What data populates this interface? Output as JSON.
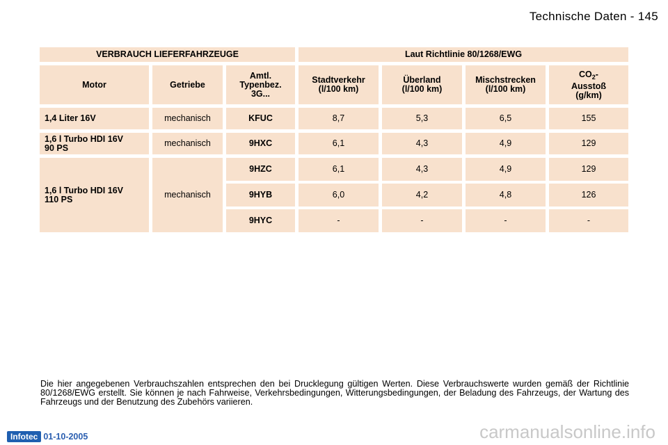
{
  "header": {
    "title": "Technische Daten",
    "separator": "-",
    "page": "145"
  },
  "table": {
    "title_left": "VERBRAUCH LIEFERFAHRZEUGE",
    "title_right": "Laut Richtlinie 80/1268/EWG",
    "col_motor": "Motor",
    "col_getriebe": "Getriebe",
    "col_typ": [
      "Amtl.",
      "Typenbez.",
      "3G..."
    ],
    "col_stadt": [
      "Stadtverkehr",
      "(l/100 km)"
    ],
    "col_ueberland": [
      "Überland",
      "(l/100 km)"
    ],
    "col_misch": [
      "Mischstrecken",
      "(l/100 km)"
    ],
    "col_co2_prefix": "CO",
    "col_co2_sub": "2",
    "col_co2_suffix": "-",
    "col_co2_lines": [
      "Ausstoß",
      "(g/km)"
    ],
    "rows": [
      {
        "motor": "1,4 Liter 16V",
        "getriebe": "mechanisch",
        "typ": "KFUC",
        "stadt": "8,7",
        "ueberland": "5,3",
        "misch": "6,5",
        "co2": "155"
      },
      {
        "motor_lines": [
          "1,6 l Turbo HDI 16V",
          "90 PS"
        ],
        "getriebe": "mechanisch",
        "typ": "9HXC",
        "stadt": "6,1",
        "ueberland": "4,3",
        "misch": "4,9",
        "co2": "129"
      }
    ],
    "group": {
      "motor_lines": [
        "1,6 l Turbo HDI 16V",
        "110 PS"
      ],
      "getriebe": "mechanisch",
      "rows": [
        {
          "typ": "9HZC",
          "stadt": "6,1",
          "ueberland": "4,3",
          "misch": "4,9",
          "co2": "129"
        },
        {
          "typ": "9HYB",
          "stadt": "6,0",
          "ueberland": "4,2",
          "misch": "4,8",
          "co2": "126"
        },
        {
          "typ": "9HYC",
          "stadt": "-",
          "ueberland": "-",
          "misch": "-",
          "co2": "-"
        }
      ]
    }
  },
  "footnote": "Die hier angegebenen Verbrauchszahlen entsprechen den bei Drucklegung gültigen Werten. Diese Verbrauchswerte wurden gemäß der Richtlinie 80/1268/EWG erstellt. Sie können je nach Fahrweise, Verkehrsbedingungen, Witterungsbedingungen, der Beladung des Fahrzeugs, der Wartung des Fahrzeugs und der Benutzung des Zubehörs variieren.",
  "footer": {
    "logo": "Infotec",
    "date": "01-10-2005"
  },
  "watermark": "carmanualsonline.info"
}
